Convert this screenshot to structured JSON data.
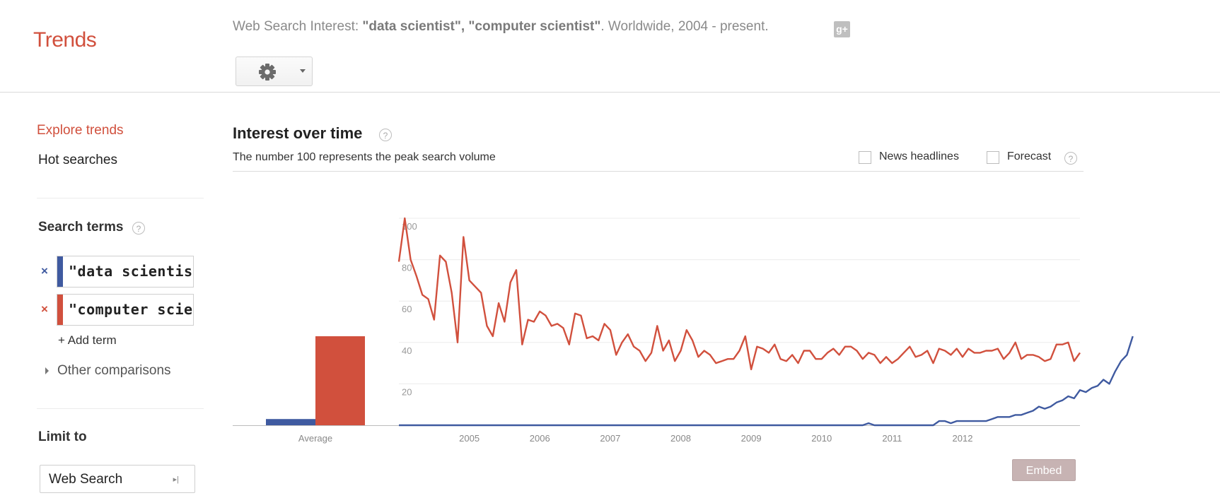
{
  "header": {
    "logo": "Trends",
    "subtitle_prefix": "Web Search Interest: ",
    "subtitle_terms": "\"data scientist\", \"computer scientist\"",
    "subtitle_suffix": ". Worldwide, 2004 - present.",
    "gplus_icon": "g-plus-icon",
    "gplus_text": "g+",
    "settings_icon": "gear-icon"
  },
  "sidebar": {
    "explore": "Explore trends",
    "hot": "Hot searches",
    "search_terms_heading": "Search terms",
    "help_glyph": "?",
    "terms": [
      {
        "x": "×",
        "label": "\"data scientist\"",
        "color": "#3f5aa0"
      },
      {
        "x": "×",
        "label": "\"computer scien",
        "color": "#d1503d"
      }
    ],
    "add_term": "+ Add term",
    "other_comparisons": "Other comparisons",
    "limit_heading": "Limit to",
    "web_search": "Web Search"
  },
  "main": {
    "title": "Interest over time",
    "description": "The number 100 represents the peak search volume",
    "news_headlines": "News headlines",
    "forecast": "Forecast",
    "embed": "Embed"
  },
  "chart_data": {
    "type": "line",
    "y_ticks": [
      "20",
      "40",
      "60",
      "80",
      "100"
    ],
    "ylim": [
      0,
      100
    ],
    "grid": true,
    "x_tick_labels": [
      "2005",
      "2006",
      "2007",
      "2008",
      "2009",
      "2010",
      "2011",
      "2012"
    ],
    "bar_label": "Average",
    "average_bars": [
      {
        "term": "data scientist",
        "value": 3,
        "color": "#3f5aa0"
      },
      {
        "term": "computer scientist",
        "value": 43,
        "color": "#d1503d"
      }
    ],
    "x_start_year": 2004,
    "series": [
      {
        "color": "#d1503d",
        "values": [
          79,
          100,
          80,
          72,
          63,
          61,
          51,
          82,
          79,
          64,
          40,
          91,
          70,
          67,
          64,
          48,
          43,
          59,
          50,
          69,
          75,
          39,
          51,
          50,
          55,
          53,
          48,
          49,
          47,
          39,
          54,
          53,
          42,
          43,
          41,
          49,
          46,
          34,
          40,
          44,
          38,
          36,
          31,
          35,
          48,
          36,
          41,
          31,
          36,
          46,
          41,
          33,
          36,
          34,
          30,
          31,
          32,
          32,
          36,
          43,
          27,
          38,
          37,
          35,
          39,
          32,
          31,
          34,
          30,
          36,
          36,
          32,
          32,
          35,
          37,
          34,
          38,
          38,
          36,
          32,
          35,
          34,
          30,
          33,
          30,
          32,
          35,
          38,
          33,
          34,
          36,
          30,
          37,
          36,
          34,
          37,
          33,
          37,
          35,
          35,
          36,
          36,
          37,
          32,
          35,
          40,
          32,
          34,
          34,
          33,
          31,
          32,
          39,
          39,
          40,
          31,
          35
        ]
      },
      {
        "color": "#3f5aa0",
        "values": [
          0,
          0,
          0,
          0,
          0,
          0,
          0,
          0,
          0,
          0,
          0,
          0,
          0,
          0,
          0,
          0,
          0,
          0,
          0,
          0,
          0,
          0,
          0,
          0,
          0,
          0,
          0,
          0,
          0,
          0,
          0,
          0,
          0,
          0,
          0,
          0,
          0,
          0,
          0,
          0,
          0,
          0,
          0,
          0,
          0,
          0,
          0,
          0,
          0,
          0,
          0,
          0,
          0,
          0,
          0,
          0,
          0,
          0,
          0,
          0,
          0,
          0,
          0,
          0,
          0,
          0,
          0,
          0,
          0,
          0,
          0,
          0,
          0,
          0,
          0,
          0,
          0,
          0,
          0,
          0,
          1,
          0,
          0,
          0,
          0,
          0,
          0,
          0,
          0,
          0,
          0,
          0,
          2,
          2,
          1,
          2,
          2,
          2,
          2,
          2,
          2,
          3,
          4,
          4,
          4,
          5,
          5,
          6,
          7,
          9,
          8,
          9,
          11,
          12,
          14,
          13,
          17,
          16,
          18,
          19,
          22,
          20,
          26,
          31,
          34,
          43
        ]
      }
    ]
  }
}
